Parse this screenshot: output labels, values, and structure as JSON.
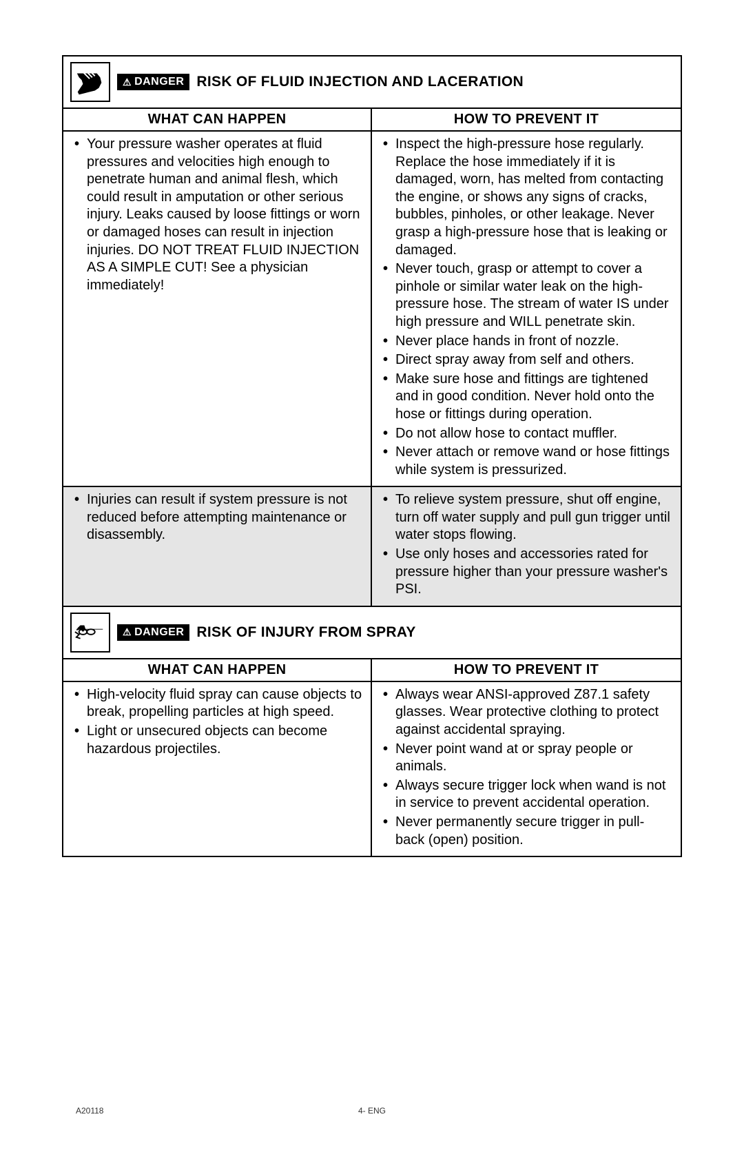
{
  "danger_label": "DANGER",
  "col_headers": {
    "left": "WHAT CAN HAPPEN",
    "right": "HOW TO PREVENT IT"
  },
  "section1": {
    "title": "RISK OF FLUID INJECTION AND LACERATION",
    "row1": {
      "happen": [
        "Your pressure washer operates at fluid pressures and velocities high enough to penetrate human and animal flesh, which could result in amputation or other serious injury. Leaks caused by loose fittings or worn or damaged hoses can result in injection injuries. DO NOT TREAT FLUID INJECTION AS A SIMPLE CUT! See a physician immediately!"
      ],
      "prevent": [
        "Inspect the high-pressure hose regularly. Replace the hose immediately if it is damaged, worn, has melted from contacting the engine, or shows any signs of cracks, bubbles, pinholes, or other leakage. Never grasp a high-pressure hose that is leaking or damaged.",
        "Never touch, grasp or attempt to cover a pinhole or similar water leak on the high-pressure hose. The stream of water IS under high pressure and WILL penetrate skin.",
        "Never place hands in front of nozzle.",
        "Direct spray away from self and others.",
        "Make sure hose and fittings are tightened and in good condition. Never hold onto the hose or fittings during operation.",
        "Do not allow hose to contact muffler.",
        "Never attach or remove wand or hose fittings while system is pressurized."
      ]
    },
    "row2": {
      "happen": [
        "Injuries can result if system pressure is not reduced before attempting maintenance or disassembly."
      ],
      "prevent": [
        "To relieve system pressure, shut off engine, turn off water supply and pull gun trigger until water stops flowing.",
        "Use only hoses and accessories rated for pressure higher than your pressure washer's PSI."
      ]
    }
  },
  "section2": {
    "title": "RISK OF INJURY FROM SPRAY",
    "row1": {
      "happen": [
        "High-velocity fluid spray can cause objects to break, propelling particles at high speed.",
        "Light or unsecured objects can become hazardous projectiles."
      ],
      "prevent": [
        "Always wear ANSI-approved Z87.1 safety glasses. Wear protective clothing to protect against accidental spraying.",
        "Never point wand at or spray people or animals.",
        "Always secure trigger lock when wand is not in service to prevent accidental operation.",
        "Never permanently secure trigger in pull-back (open) position."
      ]
    }
  },
  "footer": {
    "left": "A20118",
    "center": "4- ENG"
  },
  "colors": {
    "text": "#000000",
    "background": "#ffffff",
    "border": "#000000",
    "shaded": "#e5e5e5"
  }
}
